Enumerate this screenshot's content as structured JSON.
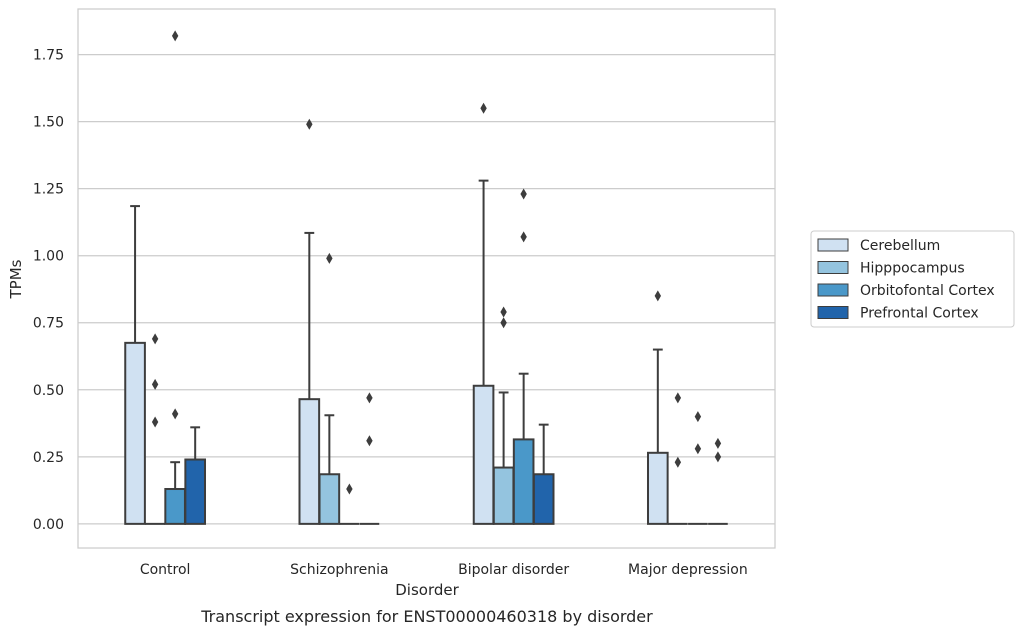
{
  "chart_data": {
    "type": "box",
    "title": "",
    "caption": "Transcript expression for ENST00000460318 by disorder",
    "xlabel": "Disorder",
    "ylabel": "TPMs",
    "ylim": [
      -0.09,
      1.92
    ],
    "yticks": [
      "0.00",
      "0.25",
      "0.50",
      "0.75",
      "1.00",
      "1.25",
      "1.50",
      "1.75"
    ],
    "categories": [
      "Control",
      "Schizophrenia",
      "Bipolar disorder",
      "Major depression"
    ],
    "grid": "horizontal",
    "legend_position": "right",
    "colors": [
      "#d0e1f2",
      "#94c4df",
      "#4a98c9",
      "#2164ab"
    ],
    "edge_color": "#3d3d3d",
    "series": [
      {
        "name": "Cerebellum",
        "boxes": [
          {
            "q1": 0,
            "q3": 0.675,
            "whisker_high": 1.185,
            "outliers": []
          },
          {
            "q1": 0,
            "q3": 0.465,
            "whisker_high": 1.085,
            "outliers": [
              1.49
            ]
          },
          {
            "q1": 0,
            "q3": 0.515,
            "whisker_high": 1.28,
            "outliers": [
              1.55
            ]
          },
          {
            "q1": 0,
            "q3": 0.265,
            "whisker_high": 0.65,
            "outliers": [
              0.85
            ]
          }
        ]
      },
      {
        "name": "Hipppocampus",
        "boxes": [
          {
            "q1": 0,
            "q3": 0,
            "whisker_high": 0,
            "outliers": [
              0.38,
              0.52,
              0.69
            ]
          },
          {
            "q1": 0,
            "q3": 0.185,
            "whisker_high": 0.405,
            "outliers": [
              0.99
            ]
          },
          {
            "q1": 0,
            "q3": 0.21,
            "whisker_high": 0.49,
            "outliers": [
              0.75,
              0.79
            ]
          },
          {
            "q1": 0,
            "q3": 0,
            "whisker_high": 0,
            "outliers": [
              0.23,
              0.47
            ]
          }
        ]
      },
      {
        "name": "Orbitofontal Cortex",
        "boxes": [
          {
            "q1": 0,
            "q3": 0.13,
            "whisker_high": 0.23,
            "outliers": [
              0.41,
              1.82
            ]
          },
          {
            "q1": 0,
            "q3": 0,
            "whisker_high": 0,
            "outliers": [
              0.13
            ]
          },
          {
            "q1": 0,
            "q3": 0.315,
            "whisker_high": 0.56,
            "outliers": [
              1.07,
              1.23
            ]
          },
          {
            "q1": 0,
            "q3": 0,
            "whisker_high": 0,
            "outliers": [
              0.28,
              0.4
            ]
          }
        ]
      },
      {
        "name": "Prefrontal Cortex",
        "boxes": [
          {
            "q1": 0,
            "q3": 0.24,
            "whisker_high": 0.36,
            "outliers": []
          },
          {
            "q1": 0,
            "q3": 0,
            "whisker_high": 0,
            "outliers": [
              0.31,
              0.47
            ]
          },
          {
            "q1": 0,
            "q3": 0.185,
            "whisker_high": 0.37,
            "outliers": []
          },
          {
            "q1": 0,
            "q3": 0,
            "whisker_high": 0,
            "outliers": [
              0.25,
              0.3
            ]
          }
        ]
      }
    ]
  }
}
